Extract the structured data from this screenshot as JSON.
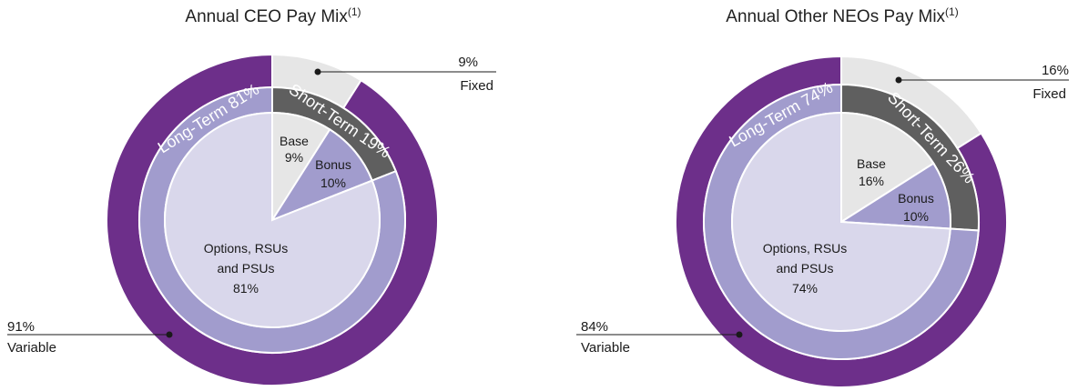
{
  "chart_data": [
    {
      "type": "pie",
      "title": "Annual CEO Pay Mix",
      "title_superscript": "(1)",
      "colors": {
        "variable": "#6d2f8a",
        "fixed_outer": "#e6e6e6",
        "short_term": "#5f5f5f",
        "long_term_ring": "#a19ccd",
        "base": "#e6e6e6",
        "bonus": "#a19ccd",
        "long_term_inner": "#d9d7eb"
      },
      "outer_ring": [
        {
          "name": "Fixed",
          "value": 9,
          "label": "9%"
        },
        {
          "name": "Variable",
          "value": 91,
          "label": "91%"
        }
      ],
      "middle_ring": [
        {
          "name": "Short-Term",
          "value": 19,
          "label": "Short-Term 19%"
        },
        {
          "name": "Long-Term",
          "value": 81,
          "label": "Long-Term 81%"
        }
      ],
      "inner_pie": [
        {
          "name": "Base",
          "value": 9,
          "label": "Base",
          "value_label": "9%"
        },
        {
          "name": "Bonus",
          "value": 10,
          "label": "Bonus",
          "value_label": "10%"
        },
        {
          "name": "Options, RSUs and PSUs",
          "value": 81,
          "label_line1": "Options, RSUs",
          "label_line2": "and PSUs",
          "value_label": "81%"
        }
      ]
    },
    {
      "type": "pie",
      "title": "Annual Other NEOs Pay Mix",
      "title_superscript": "(1)",
      "colors": {
        "variable": "#6d2f8a",
        "fixed_outer": "#e6e6e6",
        "short_term": "#5f5f5f",
        "long_term_ring": "#a19ccd",
        "base": "#e6e6e6",
        "bonus": "#a19ccd",
        "long_term_inner": "#d9d7eb"
      },
      "outer_ring": [
        {
          "name": "Fixed",
          "value": 16,
          "label": "16%"
        },
        {
          "name": "Variable",
          "value": 84,
          "label": "84%"
        }
      ],
      "middle_ring": [
        {
          "name": "Short-Term",
          "value": 26,
          "label": "Short-Term 26%"
        },
        {
          "name": "Long-Term",
          "value": 74,
          "label": "Long-Term 74%"
        }
      ],
      "inner_pie": [
        {
          "name": "Base",
          "value": 16,
          "label": "Base",
          "value_label": "16%"
        },
        {
          "name": "Bonus",
          "value": 10,
          "label": "Bonus",
          "value_label": "10%"
        },
        {
          "name": "Options, RSUs and PSUs",
          "value": 74,
          "label_line1": "Options, RSUs",
          "label_line2": "and PSUs",
          "value_label": "74%"
        }
      ]
    }
  ]
}
